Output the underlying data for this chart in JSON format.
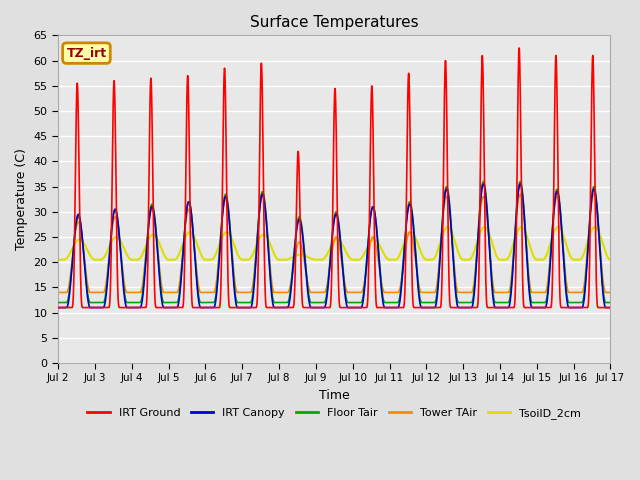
{
  "title": "Surface Temperatures",
  "ylabel": "Temperature (C)",
  "xlabel": "Time",
  "ylim": [
    0,
    65
  ],
  "xlim": [
    0,
    15
  ],
  "x_tick_labels": [
    "Jul 2",
    "Jul 3",
    "Jul 4",
    "Jul 5",
    "Jul 6",
    "Jul 7",
    "Jul 8",
    "Jul 9",
    "Jul 10",
    "Jul 11",
    "Jul 12",
    "Jul 13",
    "Jul 14",
    "Jul 15",
    "Jul 16",
    "Jul 17"
  ],
  "x_tick_positions": [
    0,
    1,
    2,
    3,
    4,
    5,
    6,
    7,
    8,
    9,
    10,
    11,
    12,
    13,
    14,
    15
  ],
  "y_ticks": [
    0,
    5,
    10,
    15,
    20,
    25,
    30,
    35,
    40,
    45,
    50,
    55,
    60,
    65
  ],
  "tz_label": "TZ_irt",
  "bg_color": "#e0e0e0",
  "plot_bg_color": "#e8e8e8",
  "grid_color": "#ffffff",
  "series": {
    "IRT Ground": {
      "color": "#ff0000",
      "lw": 1.2
    },
    "IRT Canopy": {
      "color": "#0000cc",
      "lw": 1.2
    },
    "Floor Tair": {
      "color": "#00aa00",
      "lw": 1.2
    },
    "Tower TAir": {
      "color": "#ff8800",
      "lw": 1.2
    },
    "TsoilD_2cm": {
      "color": "#dddd00",
      "lw": 1.5
    }
  },
  "n_days": 15,
  "irt_night_min": 11,
  "irt_day_max": [
    55.5,
    56.0,
    56.5,
    57.0,
    58.5,
    59.5,
    42.0,
    54.5,
    55.0,
    57.5,
    60.0,
    61.0,
    62.5,
    61.0,
    61.0
  ],
  "canopy_night_min": 11,
  "canopy_day_max": [
    29.5,
    30.5,
    31.0,
    32.0,
    33.0,
    33.5,
    28.5,
    29.5,
    31.0,
    31.5,
    34.5,
    35.5,
    35.5,
    34.0,
    34.5
  ],
  "floor_night_min": 12,
  "floor_day_max": [
    29.0,
    30.5,
    31.5,
    32.0,
    33.5,
    34.0,
    29.0,
    30.0,
    31.0,
    32.0,
    35.0,
    36.0,
    36.0,
    34.5,
    35.0
  ],
  "tower_night_min": 14,
  "tower_day_max": [
    28.0,
    29.0,
    30.5,
    30.5,
    32.5,
    33.0,
    24.0,
    25.0,
    25.0,
    26.0,
    33.0,
    33.0,
    33.5,
    33.0,
    33.5
  ],
  "soil_night_min": 20.5,
  "soil_day_max": [
    24.5,
    25.0,
    25.5,
    26.0,
    26.0,
    25.5,
    21.5,
    24.5,
    24.5,
    26.0,
    27.0,
    27.0,
    27.0,
    27.0,
    27.0
  ],
  "figsize": [
    6.4,
    4.8
  ],
  "dpi": 100
}
